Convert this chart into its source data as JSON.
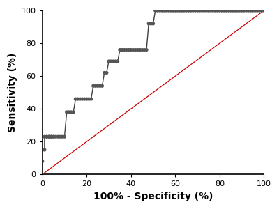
{
  "title": "",
  "xlabel": "100% - Specificity (%)",
  "ylabel": "Sensitivity (%)",
  "xlim": [
    0,
    100
  ],
  "ylim": [
    0,
    100
  ],
  "xticks": [
    0,
    20,
    40,
    60,
    80,
    100
  ],
  "yticks": [
    0,
    20,
    40,
    60,
    80,
    100
  ],
  "roc_x": [
    0,
    0,
    0,
    1,
    1,
    2,
    2,
    3,
    3,
    4,
    4,
    5,
    5,
    6,
    7,
    8,
    9,
    10,
    11,
    12,
    13,
    14,
    15,
    16,
    17,
    18,
    19,
    20,
    21,
    22,
    23,
    24,
    25,
    26,
    27,
    28,
    29,
    30,
    31,
    32,
    33,
    34,
    35,
    36,
    37,
    38,
    39,
    40,
    41,
    42,
    43,
    44,
    45,
    46,
    47,
    48,
    49,
    50,
    51,
    52,
    53,
    54,
    55,
    56,
    57,
    58,
    59,
    60,
    61,
    62,
    63,
    64,
    65,
    66,
    67,
    68,
    69,
    70,
    71,
    72,
    73,
    74,
    75,
    76,
    77,
    78,
    79,
    80,
    81,
    82,
    83,
    84,
    85,
    86,
    87,
    88,
    89,
    90,
    91,
    92,
    93,
    94,
    95,
    96,
    97,
    98,
    99,
    100
  ],
  "roc_y": [
    0,
    8,
    15,
    15,
    23,
    23,
    23,
    23,
    23,
    23,
    23,
    23,
    23,
    23,
    23,
    23,
    23,
    23,
    38,
    38,
    38,
    38,
    46,
    46,
    46,
    46,
    46,
    46,
    46,
    46,
    54,
    54,
    54,
    54,
    54,
    62,
    62,
    69,
    69,
    69,
    69,
    69,
    76,
    76,
    76,
    76,
    76,
    76,
    76,
    76,
    76,
    76,
    76,
    76,
    76,
    92,
    92,
    92,
    100,
    100,
    100,
    100,
    100,
    100,
    100,
    100,
    100,
    100,
    100,
    100,
    100,
    100,
    100,
    100,
    100,
    100,
    100,
    100,
    100,
    100,
    100,
    100,
    100,
    100,
    100,
    100,
    100,
    100,
    100,
    100,
    100,
    100,
    100,
    100,
    100,
    100,
    100,
    100,
    100,
    100,
    100,
    100,
    100,
    100,
    100,
    100,
    100,
    100
  ],
  "diagonal_color": "#cc0000",
  "curve_color": "#404040",
  "marker_color": "#555555",
  "marker_size": 14,
  "linewidth": 1.0,
  "background_color": "#ffffff",
  "tick_fontsize": 8,
  "label_fontsize": 10,
  "label_fontweight": "bold"
}
